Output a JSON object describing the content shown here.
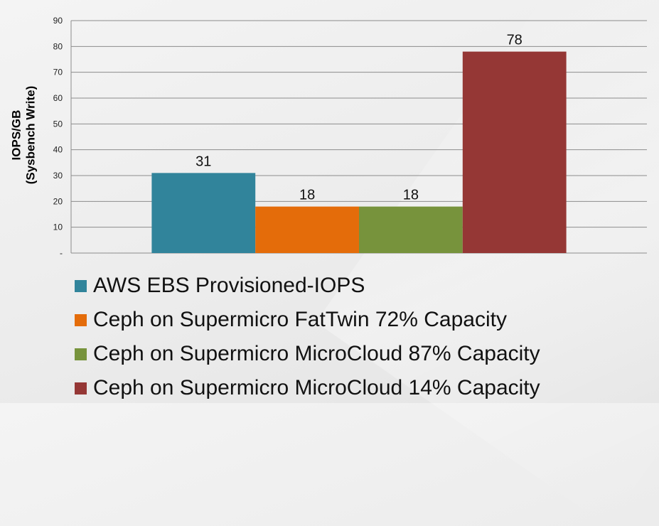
{
  "chart_data": {
    "type": "bar",
    "title": "",
    "xlabel": "",
    "ylabel_line1": "IOPS/GB",
    "ylabel_line2": "(Sysbench Write)",
    "ylim": [
      0,
      90
    ],
    "yticks": [
      0,
      10,
      20,
      30,
      40,
      50,
      60,
      70,
      80,
      90
    ],
    "ytick_labels": [
      "-",
      "10",
      "20",
      "30",
      "40",
      "50",
      "60",
      "70",
      "80",
      "90"
    ],
    "grid": true,
    "legend_position": "bottom",
    "series": [
      {
        "name": "AWS EBS Provisioned-IOPS",
        "value": 31,
        "label": "31",
        "color": "#31849b"
      },
      {
        "name": "Ceph on Supermicro FatTwin 72% Capacity",
        "value": 18,
        "label": "18",
        "color": "#e46c0a"
      },
      {
        "name": "Ceph on Supermicro MicroCloud 87% Capacity",
        "value": 18,
        "label": "18",
        "color": "#77933c"
      },
      {
        "name": "Ceph on Supermicro MicroCloud 14% Capacity",
        "value": 78,
        "label": "78",
        "color": "#953735"
      }
    ]
  }
}
